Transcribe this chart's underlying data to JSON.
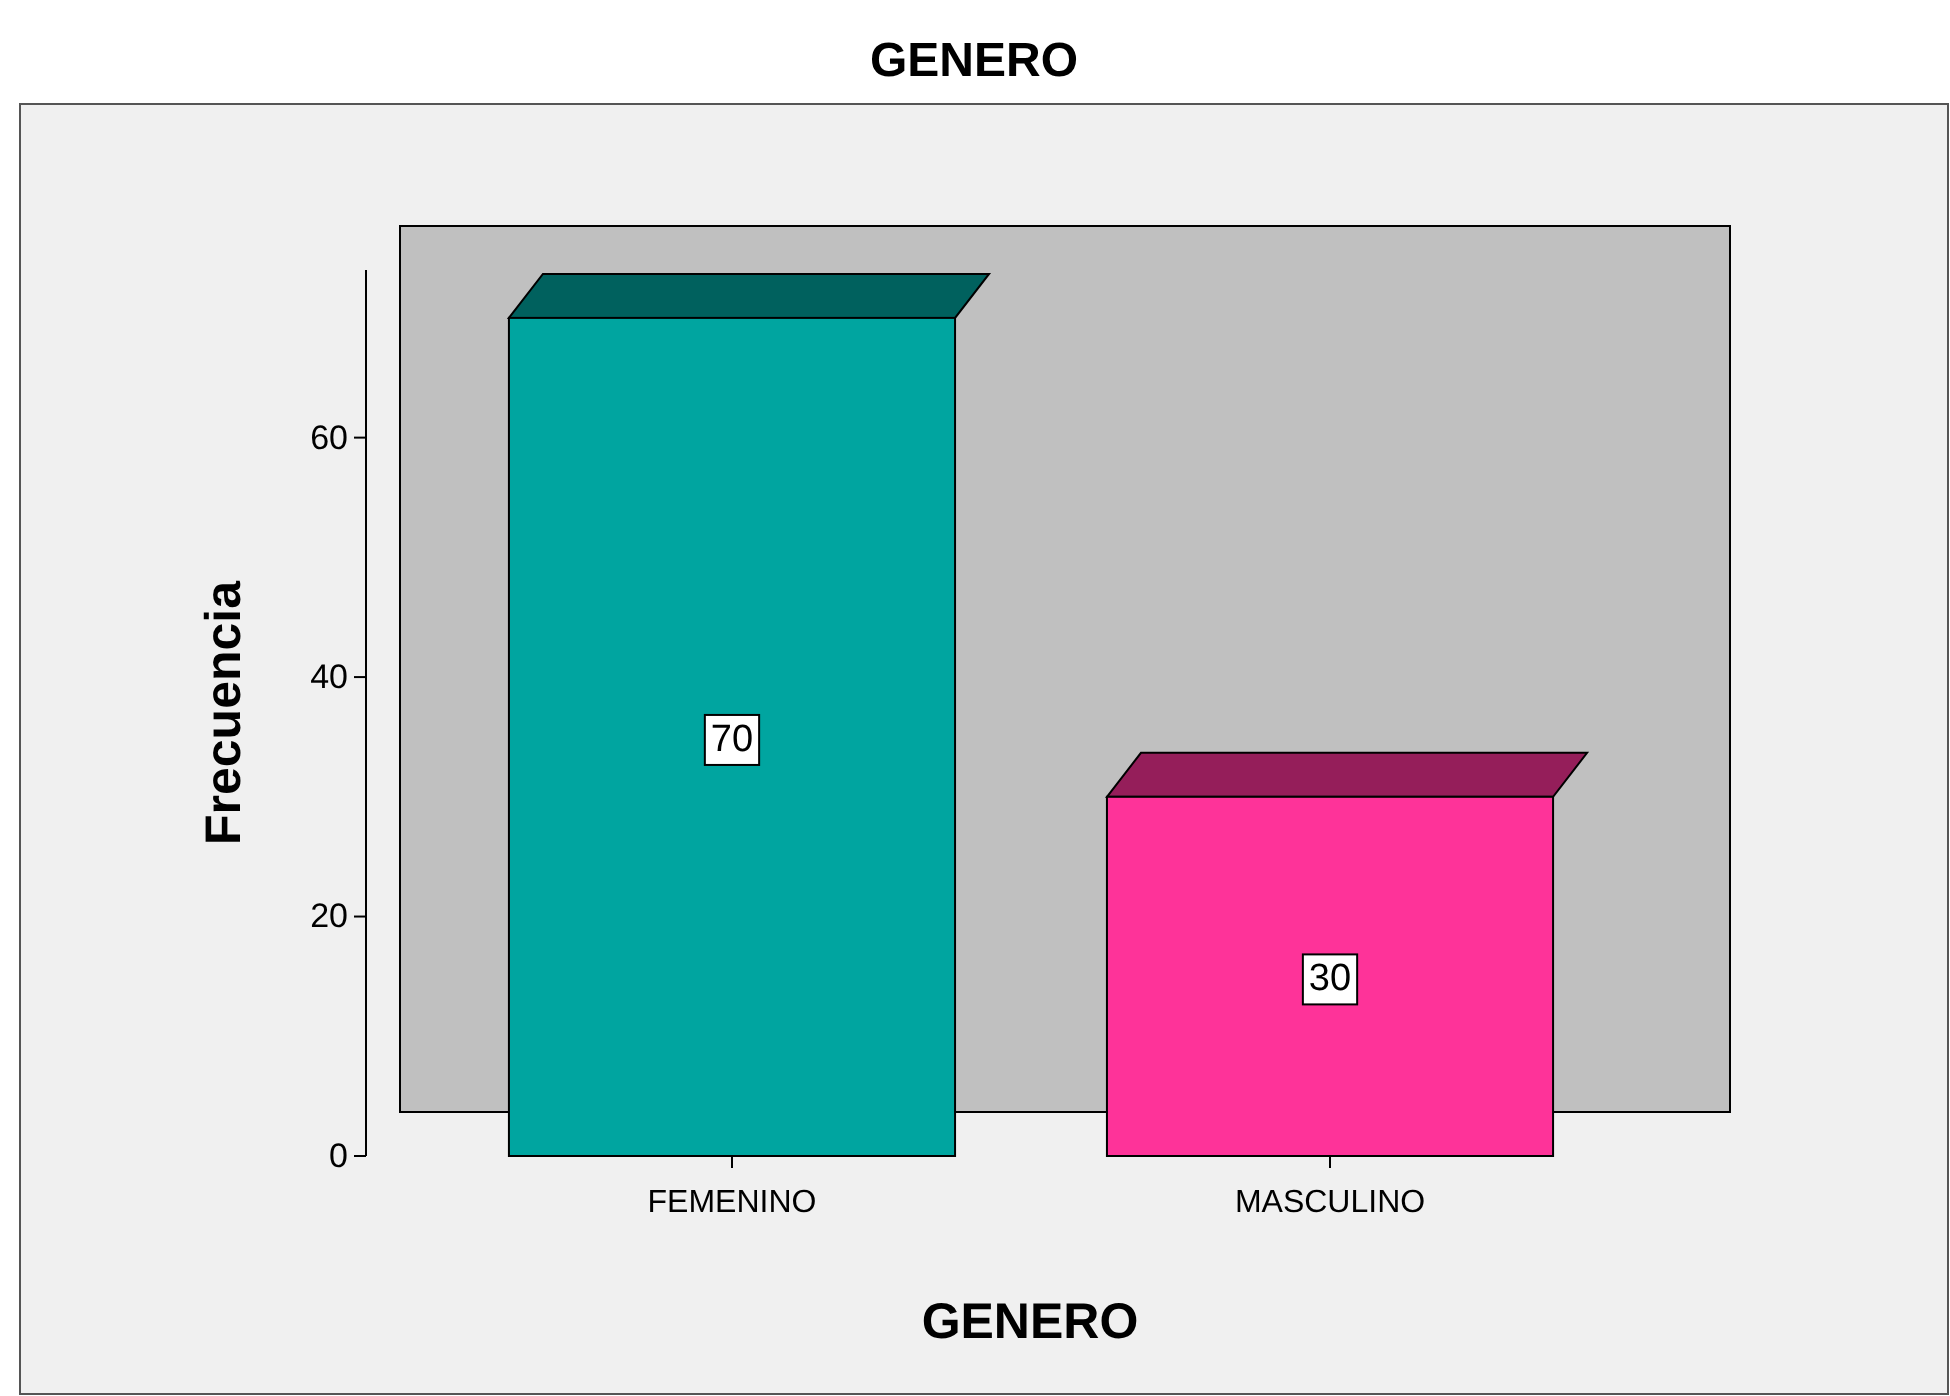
{
  "chart_data": {
    "type": "bar",
    "title": "GENERO",
    "xlabel": "GENERO",
    "ylabel": "Frecuencia",
    "categories": [
      "FEMENINO",
      "MASCULINO"
    ],
    "values": [
      70,
      30
    ],
    "colors": [
      "#00a5a0",
      "#fe3399"
    ],
    "ylim": [
      0,
      74
    ],
    "yticks": [
      0,
      20,
      40,
      60
    ],
    "data_labels": true
  }
}
